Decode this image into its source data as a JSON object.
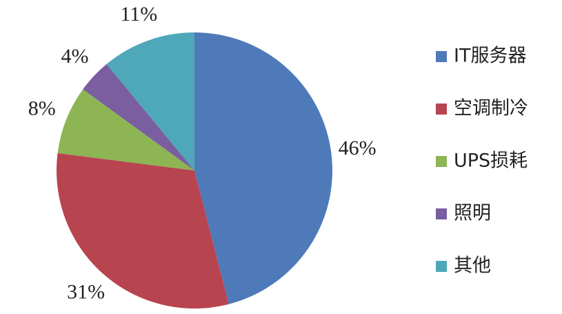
{
  "chart_data": {
    "type": "pie",
    "categories": [
      "IT服务器",
      "空调制冷",
      "UPS损耗",
      "照明",
      "其他"
    ],
    "values": [
      46,
      31,
      8,
      4,
      11
    ],
    "value_labels": [
      "46%",
      "31%",
      "8%",
      "4%",
      "11%"
    ],
    "colors": [
      "#4f7ab9",
      "#b84450",
      "#8db554",
      "#7a5ea0",
      "#4fa8ba"
    ],
    "legend": "right"
  }
}
